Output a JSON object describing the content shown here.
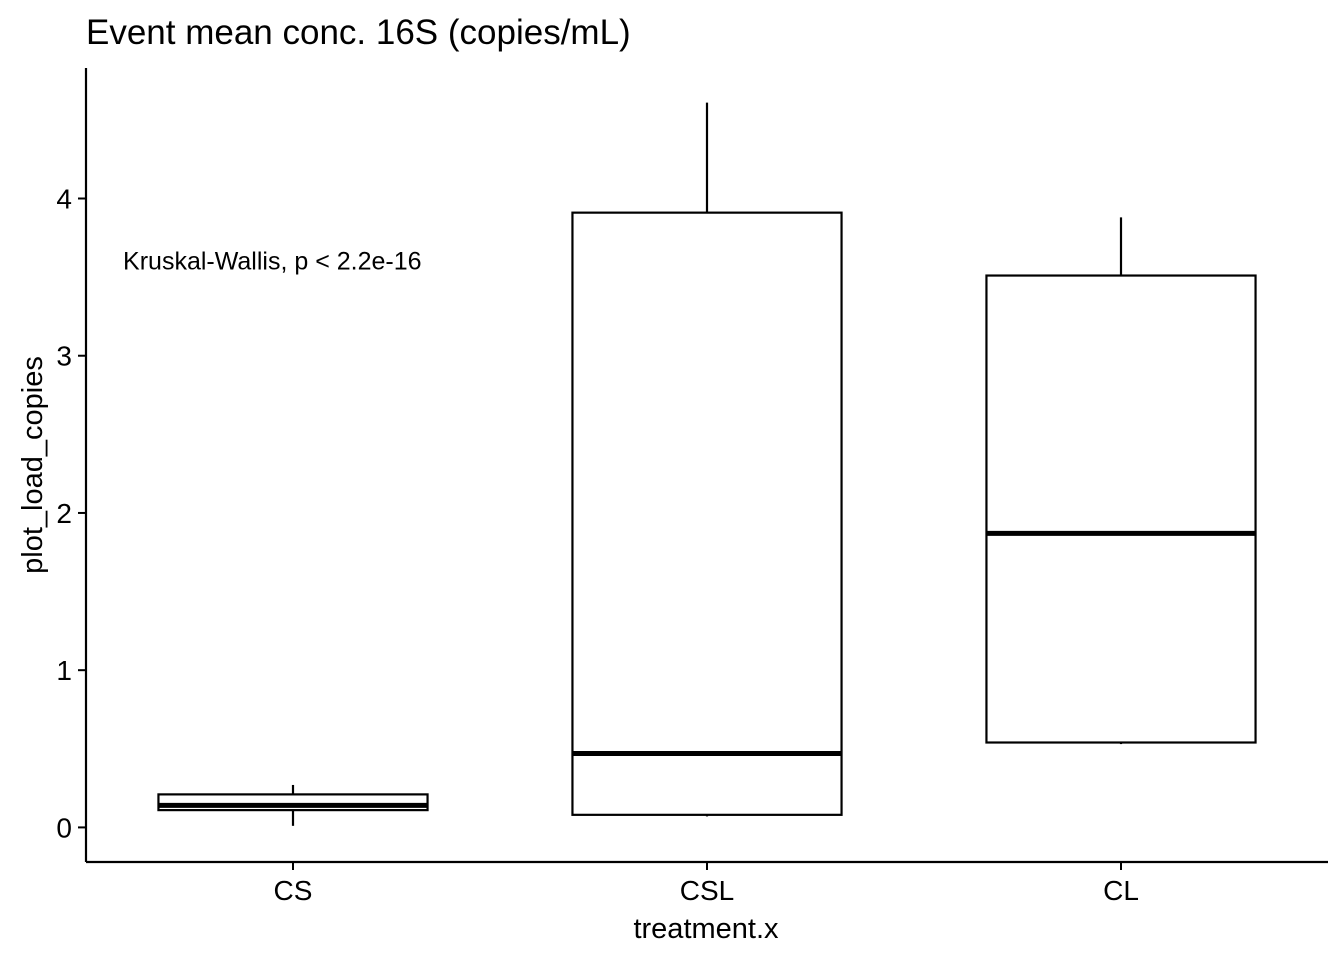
{
  "chart_data": {
    "type": "box",
    "title": "Event mean conc. 16S (copies/mL)",
    "xlabel": "treatment.x",
    "ylabel": "plot_load_copies",
    "categories": [
      "CS",
      "CSL",
      "CL"
    ],
    "boxes": [
      {
        "category": "CS",
        "whisker_low": 0.01,
        "q1": 0.11,
        "median": 0.14,
        "q3": 0.21,
        "whisker_high": 0.27
      },
      {
        "category": "CSL",
        "whisker_low": 0.07,
        "q1": 0.08,
        "median": 0.47,
        "q3": 3.91,
        "whisker_high": 4.61
      },
      {
        "category": "CL",
        "whisker_low": 0.53,
        "q1": 0.54,
        "median": 1.87,
        "q3": 3.51,
        "whisker_high": 3.88
      }
    ],
    "ylim": [
      -0.22,
      4.83
    ],
    "yticks": [
      0,
      1,
      2,
      3,
      4
    ],
    "annotation": "Kruskal-Wallis, p < 2.2e-16",
    "annotation_position": {
      "category_index": 0.45,
      "y": 3.55
    },
    "grid": false,
    "legend": "none"
  }
}
